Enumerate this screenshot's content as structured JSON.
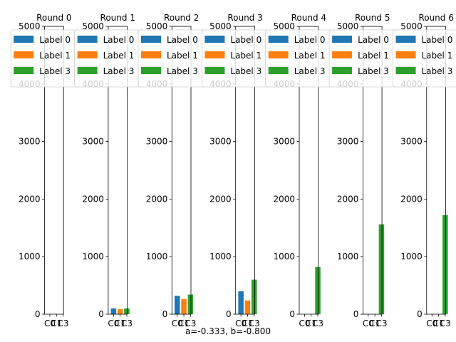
{
  "figure": {
    "caption": "a=-0.333, b=-0.800"
  },
  "chart_data": [
    {
      "type": "bar",
      "title": "Round 0",
      "categories": [
        "C0",
        "C1",
        "C3"
      ],
      "series": [
        {
          "name": "Label 0",
          "values": [
            0,
            0,
            0
          ],
          "color": "#1f77b4"
        },
        {
          "name": "Label 1",
          "values": [
            0,
            0,
            0
          ],
          "color": "#ff7f0e"
        },
        {
          "name": "Label 3",
          "values": [
            0,
            0,
            0
          ],
          "color": "#2ca02c"
        }
      ],
      "ylim": [
        0,
        5000
      ],
      "yticks": [
        0,
        1000,
        2000,
        3000,
        4000,
        5000
      ],
      "legend": "top-right",
      "grid": false
    },
    {
      "type": "bar",
      "title": "Round 1",
      "categories": [
        "C0",
        "C1",
        "C3"
      ],
      "series": [
        {
          "name": "Label 0",
          "values": [
            100,
            0,
            0
          ],
          "color": "#1f77b4"
        },
        {
          "name": "Label 1",
          "values": [
            0,
            90,
            0
          ],
          "color": "#ff7f0e"
        },
        {
          "name": "Label 3",
          "values": [
            0,
            0,
            100
          ],
          "color": "#2ca02c"
        }
      ],
      "ylim": [
        0,
        5000
      ],
      "yticks": [
        0,
        1000,
        2000,
        3000,
        4000,
        5000
      ],
      "legend": "top-right",
      "grid": false
    },
    {
      "type": "bar",
      "title": "Round 2",
      "categories": [
        "C0",
        "C1",
        "C3"
      ],
      "series": [
        {
          "name": "Label 0",
          "values": [
            320,
            0,
            0
          ],
          "color": "#1f77b4"
        },
        {
          "name": "Label 1",
          "values": [
            0,
            265,
            0
          ],
          "color": "#ff7f0e"
        },
        {
          "name": "Label 3",
          "values": [
            0,
            0,
            340
          ],
          "color": "#2ca02c"
        }
      ],
      "ylim": [
        0,
        5000
      ],
      "yticks": [
        0,
        1000,
        2000,
        3000,
        4000,
        5000
      ],
      "legend": "top-right",
      "grid": false
    },
    {
      "type": "bar",
      "title": "Round 3",
      "categories": [
        "C0",
        "C1",
        "C3"
      ],
      "series": [
        {
          "name": "Label 0",
          "values": [
            400,
            0,
            0
          ],
          "color": "#1f77b4"
        },
        {
          "name": "Label 1",
          "values": [
            0,
            240,
            0
          ],
          "color": "#ff7f0e"
        },
        {
          "name": "Label 3",
          "values": [
            0,
            0,
            600
          ],
          "color": "#2ca02c"
        }
      ],
      "ylim": [
        0,
        5000
      ],
      "yticks": [
        0,
        1000,
        2000,
        3000,
        4000,
        5000
      ],
      "legend": "top-right",
      "grid": false
    },
    {
      "type": "bar",
      "title": "Round 4",
      "categories": [
        "C0",
        "C1",
        "C3"
      ],
      "series": [
        {
          "name": "Label 0",
          "values": [
            0,
            0,
            0
          ],
          "color": "#1f77b4"
        },
        {
          "name": "Label 1",
          "values": [
            0,
            0,
            0
          ],
          "color": "#ff7f0e"
        },
        {
          "name": "Label 3",
          "values": [
            0,
            0,
            820
          ],
          "color": "#2ca02c"
        }
      ],
      "ylim": [
        0,
        5000
      ],
      "yticks": [
        0,
        1000,
        2000,
        3000,
        4000,
        5000
      ],
      "legend": "top-right",
      "grid": false
    },
    {
      "type": "bar",
      "title": "Round 5",
      "categories": [
        "C0",
        "C1",
        "C3"
      ],
      "series": [
        {
          "name": "Label 0",
          "values": [
            0,
            0,
            0
          ],
          "color": "#1f77b4"
        },
        {
          "name": "Label 1",
          "values": [
            0,
            0,
            0
          ],
          "color": "#ff7f0e"
        },
        {
          "name": "Label 3",
          "values": [
            0,
            0,
            1560
          ],
          "color": "#2ca02c"
        }
      ],
      "ylim": [
        0,
        5000
      ],
      "yticks": [
        0,
        1000,
        2000,
        3000,
        4000,
        5000
      ],
      "legend": "top-right",
      "grid": false
    },
    {
      "type": "bar",
      "title": "Round 6",
      "categories": [
        "C0",
        "C1",
        "C3"
      ],
      "series": [
        {
          "name": "Label 0",
          "values": [
            0,
            0,
            0
          ],
          "color": "#1f77b4"
        },
        {
          "name": "Label 1",
          "values": [
            0,
            0,
            0
          ],
          "color": "#ff7f0e"
        },
        {
          "name": "Label 3",
          "values": [
            0,
            0,
            1720
          ],
          "color": "#2ca02c"
        }
      ],
      "ylim": [
        0,
        5000
      ],
      "yticks": [
        0,
        1000,
        2000,
        3000,
        4000,
        5000
      ],
      "legend": "top-right",
      "grid": false
    }
  ]
}
